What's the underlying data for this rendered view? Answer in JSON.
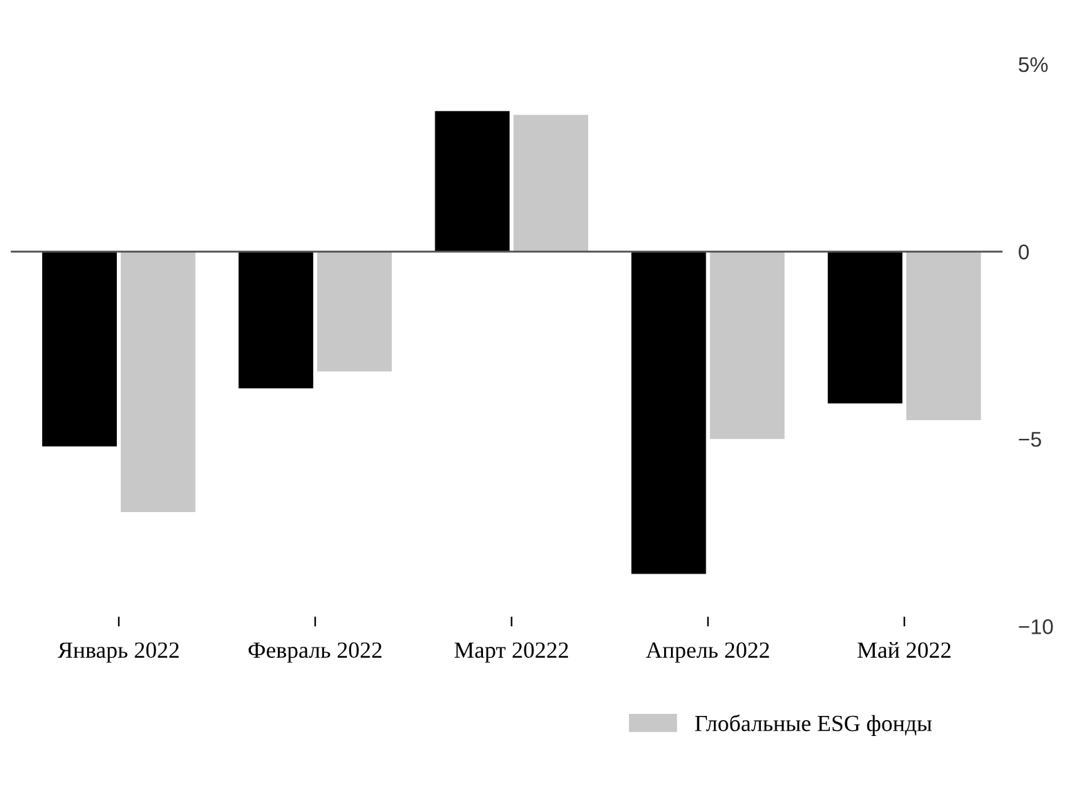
{
  "chart_data": {
    "type": "bar",
    "categories": [
      "Январь 2022",
      "Февраль 2022",
      "Март 20222",
      "Апрель 2022",
      "Май 2022"
    ],
    "series": [
      {
        "color": "#000000",
        "values": [
          -5.2,
          -3.65,
          3.75,
          -8.6,
          -4.05
        ]
      },
      {
        "name": "Глобальные ESG фонды",
        "color": "#c8c8c8",
        "values": [
          -6.95,
          -3.2,
          3.65,
          -5.0,
          -4.5
        ]
      }
    ],
    "ylim": [
      -10,
      5
    ],
    "yticks": [
      {
        "value": 5,
        "label": "5%"
      },
      0,
      -5,
      -10
    ],
    "ref_lines": [
      {
        "axis": "y",
        "value": 0,
        "color": "#555555"
      }
    ],
    "grid": false,
    "legend": "bottom"
  }
}
